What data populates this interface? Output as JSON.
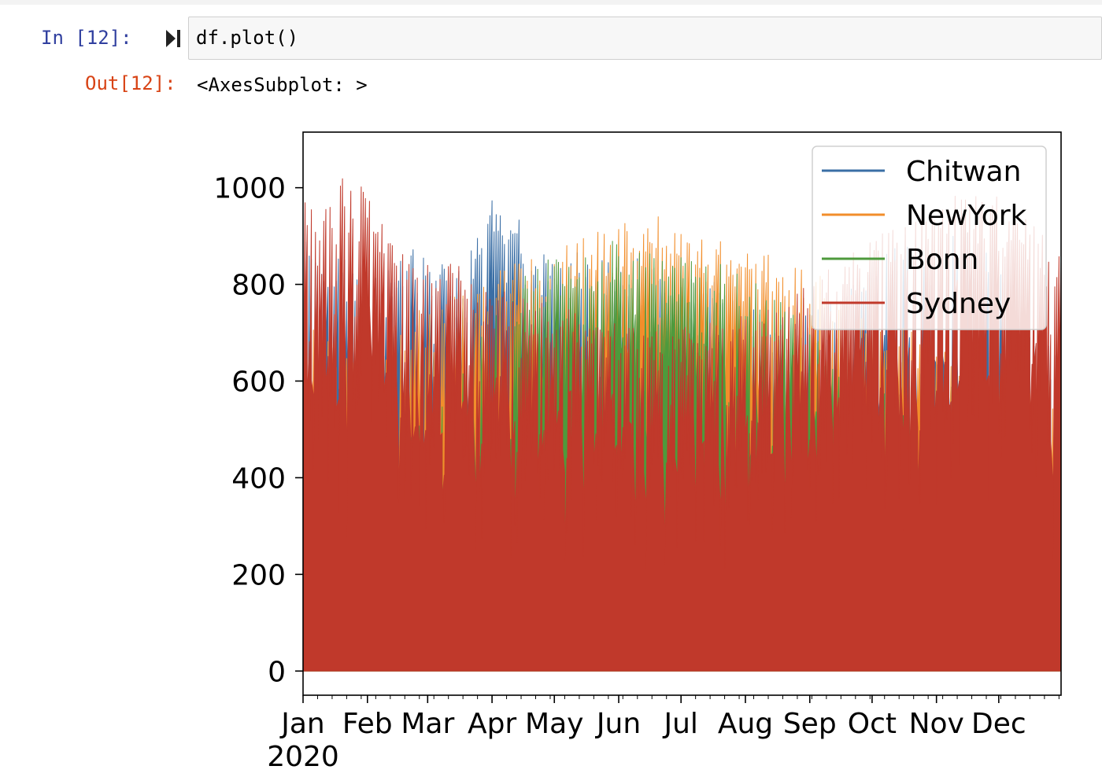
{
  "cell": {
    "in_prompt": "In [12]:",
    "code": "df.plot()",
    "out_prompt": "Out[12]:",
    "output_repr": "<AxesSubplot: >"
  },
  "colors": {
    "in_prompt": "#303f9f",
    "out_prompt": "#d84315",
    "cell_background": "#f7f7f7"
  },
  "chart_data": {
    "type": "area",
    "title": "",
    "xlabel": "",
    "ylabel": "",
    "x_ticks": [
      "Jan",
      "Feb",
      "Mar",
      "Apr",
      "May",
      "Jun",
      "Jul",
      "Aug",
      "Sep",
      "Oct",
      "Nov",
      "Dec"
    ],
    "x_year_label": "2020",
    "x_range": [
      "2020-01-01",
      "2020-12-31"
    ],
    "y_ticks": [
      0,
      200,
      400,
      600,
      800,
      1000
    ],
    "ylim": [
      -50,
      1115
    ],
    "legend_position": "upper right",
    "series": [
      {
        "name": "Chitwan",
        "color": "#3a6ea5",
        "points": [
          [
            "2020-01-01",
            930
          ],
          [
            "2020-01-15",
            880
          ],
          [
            "2020-02-01",
            820
          ],
          [
            "2020-02-15",
            880
          ],
          [
            "2020-03-01",
            870
          ],
          [
            "2020-03-15",
            860
          ],
          [
            "2020-03-25",
            900
          ],
          [
            "2020-04-01",
            980
          ],
          [
            "2020-04-10",
            970
          ],
          [
            "2020-04-20",
            880
          ],
          [
            "2020-05-01",
            860
          ],
          [
            "2020-05-15",
            870
          ],
          [
            "2020-06-01",
            880
          ],
          [
            "2020-06-15",
            850
          ],
          [
            "2020-07-01",
            830
          ],
          [
            "2020-07-15",
            820
          ],
          [
            "2020-08-01",
            760
          ],
          [
            "2020-08-15",
            720
          ],
          [
            "2020-09-01",
            740
          ],
          [
            "2020-09-15",
            780
          ],
          [
            "2020-10-01",
            860
          ],
          [
            "2020-10-15",
            920
          ],
          [
            "2020-11-01",
            850
          ],
          [
            "2020-11-15",
            950
          ],
          [
            "2020-12-01",
            830
          ],
          [
            "2020-12-15",
            760
          ],
          [
            "2020-12-31",
            650
          ]
        ]
      },
      {
        "name": "NewYork",
        "color": "#f28e2b",
        "points": [
          [
            "2020-01-01",
            720
          ],
          [
            "2020-02-01",
            700
          ],
          [
            "2020-02-15",
            720
          ],
          [
            "2020-03-01",
            760
          ],
          [
            "2020-03-15",
            780
          ],
          [
            "2020-04-01",
            820
          ],
          [
            "2020-04-15",
            860
          ],
          [
            "2020-05-01",
            880
          ],
          [
            "2020-05-15",
            900
          ],
          [
            "2020-06-01",
            930
          ],
          [
            "2020-06-15",
            950
          ],
          [
            "2020-07-01",
            920
          ],
          [
            "2020-07-15",
            900
          ],
          [
            "2020-08-01",
            880
          ],
          [
            "2020-08-15",
            860
          ],
          [
            "2020-09-01",
            830
          ],
          [
            "2020-09-15",
            800
          ],
          [
            "2020-10-01",
            760
          ],
          [
            "2020-10-15",
            720
          ],
          [
            "2020-11-01",
            680
          ],
          [
            "2020-11-15",
            660
          ],
          [
            "2020-12-01",
            640
          ],
          [
            "2020-12-31",
            620
          ]
        ]
      },
      {
        "name": "Bonn",
        "color": "#4e9a3c",
        "points": [
          [
            "2020-01-01",
            420
          ],
          [
            "2020-02-01",
            480
          ],
          [
            "2020-03-01",
            560
          ],
          [
            "2020-04-01",
            740
          ],
          [
            "2020-04-15",
            820
          ],
          [
            "2020-05-01",
            870
          ],
          [
            "2020-05-15",
            880
          ],
          [
            "2020-06-01",
            900
          ],
          [
            "2020-06-15",
            880
          ],
          [
            "2020-07-01",
            860
          ],
          [
            "2020-07-15",
            850
          ],
          [
            "2020-08-01",
            830
          ],
          [
            "2020-08-15",
            780
          ],
          [
            "2020-09-01",
            700
          ],
          [
            "2020-10-01",
            600
          ],
          [
            "2020-11-01",
            500
          ],
          [
            "2020-12-01",
            450
          ],
          [
            "2020-12-31",
            440
          ]
        ]
      },
      {
        "name": "Sydney",
        "color": "#c0392b",
        "points": [
          [
            "2020-01-01",
            990
          ],
          [
            "2020-01-10",
            940
          ],
          [
            "2020-01-20",
            1020
          ],
          [
            "2020-02-01",
            1000
          ],
          [
            "2020-02-15",
            900
          ],
          [
            "2020-03-01",
            860
          ],
          [
            "2020-03-15",
            840
          ],
          [
            "2020-04-01",
            800
          ],
          [
            "2020-04-15",
            780
          ],
          [
            "2020-05-01",
            760
          ],
          [
            "2020-05-15",
            740
          ],
          [
            "2020-06-01",
            720
          ],
          [
            "2020-06-15",
            700
          ],
          [
            "2020-07-01",
            710
          ],
          [
            "2020-07-15",
            730
          ],
          [
            "2020-08-01",
            740
          ],
          [
            "2020-08-15",
            760
          ],
          [
            "2020-09-01",
            800
          ],
          [
            "2020-09-15",
            860
          ],
          [
            "2020-10-01",
            900
          ],
          [
            "2020-10-15",
            940
          ],
          [
            "2020-11-01",
            970
          ],
          [
            "2020-11-15",
            1000
          ],
          [
            "2020-12-01",
            980
          ],
          [
            "2020-12-15",
            940
          ],
          [
            "2020-12-31",
            860
          ]
        ]
      }
    ]
  }
}
